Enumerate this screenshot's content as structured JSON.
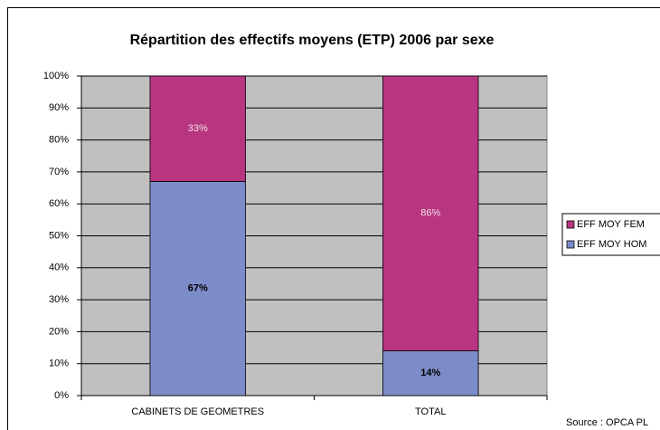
{
  "chart_data": {
    "type": "stacked_bar",
    "title": "Répartition des effectifs moyens (ETP) 2006 par sexe",
    "categories": [
      "CABINETS DE GEOMETRES",
      "TOTAL"
    ],
    "series": [
      {
        "name": "EFF MOY HOM",
        "color": "#7b8cc8",
        "values": [
          67,
          14
        ],
        "value_labels": [
          "67%",
          "14%"
        ]
      },
      {
        "name": "EFF MOY FEM",
        "color": "#b83680",
        "values": [
          33,
          86
        ],
        "value_labels": [
          "33%",
          "86%"
        ]
      }
    ],
    "ylim": [
      0,
      100
    ],
    "yticks": [
      {
        "value": 0,
        "label": "0%"
      },
      {
        "value": 10,
        "label": "10%"
      },
      {
        "value": 20,
        "label": "20%"
      },
      {
        "value": 30,
        "label": "30%"
      },
      {
        "value": 40,
        "label": "40%"
      },
      {
        "value": 50,
        "label": "50%"
      },
      {
        "value": 60,
        "label": "60%"
      },
      {
        "value": 70,
        "label": "70%"
      },
      {
        "value": 80,
        "label": "80%"
      },
      {
        "value": 90,
        "label": "90%"
      },
      {
        "value": 100,
        "label": "100%"
      }
    ],
    "grid": true,
    "legend": "right",
    "plot_background": "#c0c0c0",
    "source": "Source : OPCA PL"
  }
}
